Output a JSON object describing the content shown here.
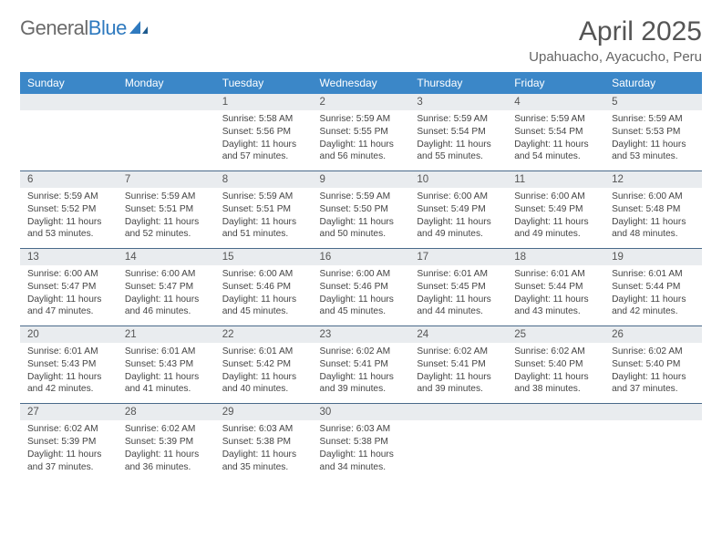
{
  "brand": {
    "part1": "General",
    "part2": "Blue"
  },
  "title": "April 2025",
  "location": "Upahuacho, Ayacucho, Peru",
  "colors": {
    "header_bg": "#3b87c8",
    "header_text": "#ffffff",
    "daynum_bg": "#e9ecef",
    "row_border": "#4a6a8a",
    "body_text": "#444444",
    "title_text": "#555555"
  },
  "weekdays": [
    "Sunday",
    "Monday",
    "Tuesday",
    "Wednesday",
    "Thursday",
    "Friday",
    "Saturday"
  ],
  "weeks": [
    {
      "nums": [
        "",
        "",
        "1",
        "2",
        "3",
        "4",
        "5"
      ],
      "cells": [
        null,
        null,
        {
          "sunrise": "Sunrise: 5:58 AM",
          "sunset": "Sunset: 5:56 PM",
          "day1": "Daylight: 11 hours",
          "day2": "and 57 minutes."
        },
        {
          "sunrise": "Sunrise: 5:59 AM",
          "sunset": "Sunset: 5:55 PM",
          "day1": "Daylight: 11 hours",
          "day2": "and 56 minutes."
        },
        {
          "sunrise": "Sunrise: 5:59 AM",
          "sunset": "Sunset: 5:54 PM",
          "day1": "Daylight: 11 hours",
          "day2": "and 55 minutes."
        },
        {
          "sunrise": "Sunrise: 5:59 AM",
          "sunset": "Sunset: 5:54 PM",
          "day1": "Daylight: 11 hours",
          "day2": "and 54 minutes."
        },
        {
          "sunrise": "Sunrise: 5:59 AM",
          "sunset": "Sunset: 5:53 PM",
          "day1": "Daylight: 11 hours",
          "day2": "and 53 minutes."
        }
      ]
    },
    {
      "nums": [
        "6",
        "7",
        "8",
        "9",
        "10",
        "11",
        "12"
      ],
      "cells": [
        {
          "sunrise": "Sunrise: 5:59 AM",
          "sunset": "Sunset: 5:52 PM",
          "day1": "Daylight: 11 hours",
          "day2": "and 53 minutes."
        },
        {
          "sunrise": "Sunrise: 5:59 AM",
          "sunset": "Sunset: 5:51 PM",
          "day1": "Daylight: 11 hours",
          "day2": "and 52 minutes."
        },
        {
          "sunrise": "Sunrise: 5:59 AM",
          "sunset": "Sunset: 5:51 PM",
          "day1": "Daylight: 11 hours",
          "day2": "and 51 minutes."
        },
        {
          "sunrise": "Sunrise: 5:59 AM",
          "sunset": "Sunset: 5:50 PM",
          "day1": "Daylight: 11 hours",
          "day2": "and 50 minutes."
        },
        {
          "sunrise": "Sunrise: 6:00 AM",
          "sunset": "Sunset: 5:49 PM",
          "day1": "Daylight: 11 hours",
          "day2": "and 49 minutes."
        },
        {
          "sunrise": "Sunrise: 6:00 AM",
          "sunset": "Sunset: 5:49 PM",
          "day1": "Daylight: 11 hours",
          "day2": "and 49 minutes."
        },
        {
          "sunrise": "Sunrise: 6:00 AM",
          "sunset": "Sunset: 5:48 PM",
          "day1": "Daylight: 11 hours",
          "day2": "and 48 minutes."
        }
      ]
    },
    {
      "nums": [
        "13",
        "14",
        "15",
        "16",
        "17",
        "18",
        "19"
      ],
      "cells": [
        {
          "sunrise": "Sunrise: 6:00 AM",
          "sunset": "Sunset: 5:47 PM",
          "day1": "Daylight: 11 hours",
          "day2": "and 47 minutes."
        },
        {
          "sunrise": "Sunrise: 6:00 AM",
          "sunset": "Sunset: 5:47 PM",
          "day1": "Daylight: 11 hours",
          "day2": "and 46 minutes."
        },
        {
          "sunrise": "Sunrise: 6:00 AM",
          "sunset": "Sunset: 5:46 PM",
          "day1": "Daylight: 11 hours",
          "day2": "and 45 minutes."
        },
        {
          "sunrise": "Sunrise: 6:00 AM",
          "sunset": "Sunset: 5:46 PM",
          "day1": "Daylight: 11 hours",
          "day2": "and 45 minutes."
        },
        {
          "sunrise": "Sunrise: 6:01 AM",
          "sunset": "Sunset: 5:45 PM",
          "day1": "Daylight: 11 hours",
          "day2": "and 44 minutes."
        },
        {
          "sunrise": "Sunrise: 6:01 AM",
          "sunset": "Sunset: 5:44 PM",
          "day1": "Daylight: 11 hours",
          "day2": "and 43 minutes."
        },
        {
          "sunrise": "Sunrise: 6:01 AM",
          "sunset": "Sunset: 5:44 PM",
          "day1": "Daylight: 11 hours",
          "day2": "and 42 minutes."
        }
      ]
    },
    {
      "nums": [
        "20",
        "21",
        "22",
        "23",
        "24",
        "25",
        "26"
      ],
      "cells": [
        {
          "sunrise": "Sunrise: 6:01 AM",
          "sunset": "Sunset: 5:43 PM",
          "day1": "Daylight: 11 hours",
          "day2": "and 42 minutes."
        },
        {
          "sunrise": "Sunrise: 6:01 AM",
          "sunset": "Sunset: 5:43 PM",
          "day1": "Daylight: 11 hours",
          "day2": "and 41 minutes."
        },
        {
          "sunrise": "Sunrise: 6:01 AM",
          "sunset": "Sunset: 5:42 PM",
          "day1": "Daylight: 11 hours",
          "day2": "and 40 minutes."
        },
        {
          "sunrise": "Sunrise: 6:02 AM",
          "sunset": "Sunset: 5:41 PM",
          "day1": "Daylight: 11 hours",
          "day2": "and 39 minutes."
        },
        {
          "sunrise": "Sunrise: 6:02 AM",
          "sunset": "Sunset: 5:41 PM",
          "day1": "Daylight: 11 hours",
          "day2": "and 39 minutes."
        },
        {
          "sunrise": "Sunrise: 6:02 AM",
          "sunset": "Sunset: 5:40 PM",
          "day1": "Daylight: 11 hours",
          "day2": "and 38 minutes."
        },
        {
          "sunrise": "Sunrise: 6:02 AM",
          "sunset": "Sunset: 5:40 PM",
          "day1": "Daylight: 11 hours",
          "day2": "and 37 minutes."
        }
      ]
    },
    {
      "nums": [
        "27",
        "28",
        "29",
        "30",
        "",
        "",
        ""
      ],
      "cells": [
        {
          "sunrise": "Sunrise: 6:02 AM",
          "sunset": "Sunset: 5:39 PM",
          "day1": "Daylight: 11 hours",
          "day2": "and 37 minutes."
        },
        {
          "sunrise": "Sunrise: 6:02 AM",
          "sunset": "Sunset: 5:39 PM",
          "day1": "Daylight: 11 hours",
          "day2": "and 36 minutes."
        },
        {
          "sunrise": "Sunrise: 6:03 AM",
          "sunset": "Sunset: 5:38 PM",
          "day1": "Daylight: 11 hours",
          "day2": "and 35 minutes."
        },
        {
          "sunrise": "Sunrise: 6:03 AM",
          "sunset": "Sunset: 5:38 PM",
          "day1": "Daylight: 11 hours",
          "day2": "and 34 minutes."
        },
        null,
        null,
        null
      ]
    }
  ]
}
